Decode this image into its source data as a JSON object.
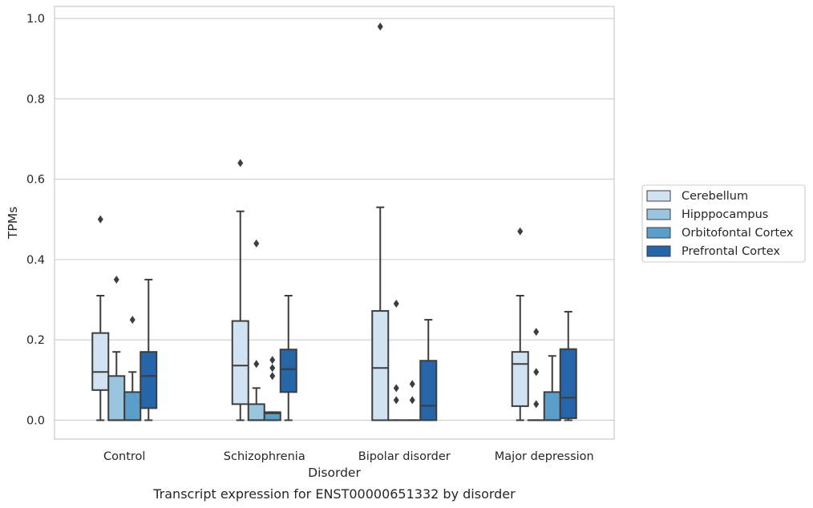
{
  "chart_data": {
    "type": "boxplot",
    "title": "Transcript expression for ENST00000651332 by disorder",
    "xlabel": "Disorder",
    "ylabel": "TPMs",
    "ylim": [
      -0.047,
      1.03
    ],
    "yticks": [
      0.0,
      0.2,
      0.4,
      0.6,
      0.8,
      1.0
    ],
    "ytick_labels": [
      "0.0",
      "0.2",
      "0.4",
      "0.6",
      "0.8",
      "1.0"
    ],
    "grid": true,
    "legend_position": "right",
    "categories": [
      "Control",
      "Schizophrenia",
      "Bipolar disorder",
      "Major depression"
    ],
    "series": [
      {
        "name": "Cerebellum",
        "color": "#d1e2f2",
        "boxes": [
          {
            "q1": 0.075,
            "median": 0.12,
            "q3": 0.217,
            "whisker_low": 0.0,
            "whisker_high": 0.31,
            "outliers": [
              0.5
            ]
          },
          {
            "q1": 0.04,
            "median": 0.136,
            "q3": 0.247,
            "whisker_low": 0.0,
            "whisker_high": 0.52,
            "outliers": [
              0.64
            ]
          },
          {
            "q1": 0.0,
            "median": 0.13,
            "q3": 0.272,
            "whisker_low": 0.0,
            "whisker_high": 0.53,
            "outliers": [
              0.98
            ]
          },
          {
            "q1": 0.035,
            "median": 0.14,
            "q3": 0.17,
            "whisker_low": 0.0,
            "whisker_high": 0.31,
            "outliers": [
              0.47
            ]
          }
        ]
      },
      {
        "name": "Hipppocampus",
        "color": "#9ac5df",
        "boxes": [
          {
            "q1": 0.0,
            "median": 0.0,
            "q3": 0.11,
            "whisker_low": 0.0,
            "whisker_high": 0.17,
            "outliers": [
              0.35
            ]
          },
          {
            "q1": 0.0,
            "median": 0.0,
            "q3": 0.04,
            "whisker_low": 0.0,
            "whisker_high": 0.08,
            "outliers": [
              0.14,
              0.44
            ]
          },
          {
            "q1": 0.0,
            "median": 0.0,
            "q3": 0.0,
            "whisker_low": 0.0,
            "whisker_high": 0.0,
            "outliers": [
              0.05,
              0.08,
              0.29
            ]
          },
          {
            "q1": 0.0,
            "median": 0.0,
            "q3": 0.0,
            "whisker_low": 0.0,
            "whisker_high": 0.0,
            "outliers": [
              0.04,
              0.12,
              0.22
            ]
          }
        ]
      },
      {
        "name": "Orbitofontal Cortex",
        "color": "#5a9ec9",
        "boxes": [
          {
            "q1": 0.0,
            "median": 0.0,
            "q3": 0.07,
            "whisker_low": 0.0,
            "whisker_high": 0.12,
            "outliers": [
              0.25
            ]
          },
          {
            "q1": 0.0,
            "median": 0.017,
            "q3": 0.02,
            "whisker_low": 0.0,
            "whisker_high": 0.02,
            "outliers": [
              0.11,
              0.13,
              0.15
            ]
          },
          {
            "q1": 0.0,
            "median": 0.0,
            "q3": 0.0,
            "whisker_low": 0.0,
            "whisker_high": 0.0,
            "outliers": [
              0.05,
              0.09
            ]
          },
          {
            "q1": 0.0,
            "median": 0.0,
            "q3": 0.07,
            "whisker_low": 0.0,
            "whisker_high": 0.16,
            "outliers": []
          }
        ]
      },
      {
        "name": "Prefrontal Cortex",
        "color": "#2565a8",
        "boxes": [
          {
            "q1": 0.03,
            "median": 0.11,
            "q3": 0.17,
            "whisker_low": 0.0,
            "whisker_high": 0.35,
            "outliers": []
          },
          {
            "q1": 0.07,
            "median": 0.127,
            "q3": 0.176,
            "whisker_low": 0.0,
            "whisker_high": 0.31,
            "outliers": []
          },
          {
            "q1": 0.0,
            "median": 0.036,
            "q3": 0.148,
            "whisker_low": 0.0,
            "whisker_high": 0.25,
            "outliers": []
          },
          {
            "q1": 0.005,
            "median": 0.056,
            "q3": 0.177,
            "whisker_low": 0.0,
            "whisker_high": 0.27,
            "outliers": []
          }
        ]
      }
    ]
  }
}
